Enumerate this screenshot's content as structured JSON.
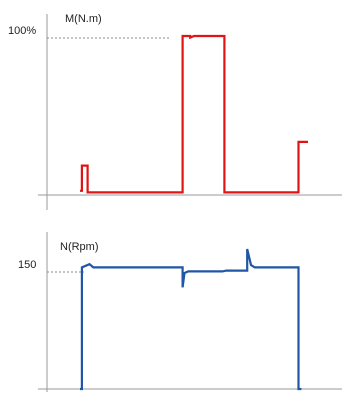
{
  "colors": {
    "torque": "#e01414",
    "speed": "#1f56a6",
    "axis": "#9a9a9a",
    "reference": "#8a8a8a"
  },
  "chart_data": [
    {
      "type": "line",
      "ylabel": "M(N.m)",
      "reference": {
        "label": "100%",
        "value": 100
      },
      "ylim": [
        0,
        100
      ],
      "series": [
        {
          "x": [
            0,
            0.1,
            0.1,
            0.4,
            0.4,
            2.3,
            2.3,
            3.6,
            3.6,
            5.4,
            5.4,
            5.8,
            5.8,
            6.0,
            6.2,
            7.6,
            7.6,
            9.3,
            9.3,
            9.35,
            9.35,
            11.5,
            11.5,
            12.0
          ],
          "y": [
            2,
            2,
            18,
            18,
            1,
            1,
            1,
            1,
            1,
            1,
            100,
            100,
            99,
            100,
            100,
            100,
            1,
            1,
            1,
            1,
            1,
            1,
            33,
            33
          ]
        }
      ]
    },
    {
      "type": "line",
      "ylabel": "N(Rpm)",
      "reference": {
        "label": "150",
        "value": 150
      },
      "ylim": [
        0,
        200
      ],
      "series": [
        {
          "x": [
            0,
            0.1,
            0.1,
            0.5,
            0.7,
            5.4,
            5.4,
            5.5,
            5.7,
            7.5,
            7.7,
            8.8,
            8.8,
            9.0,
            9.2,
            10.0,
            11.5,
            11.5,
            11.65
          ],
          "y": [
            0,
            0,
            152,
            156,
            152,
            152,
            127,
            145,
            147,
            147,
            148,
            148,
            175,
            155,
            152,
            152,
            152,
            0,
            0
          ]
        }
      ]
    }
  ]
}
